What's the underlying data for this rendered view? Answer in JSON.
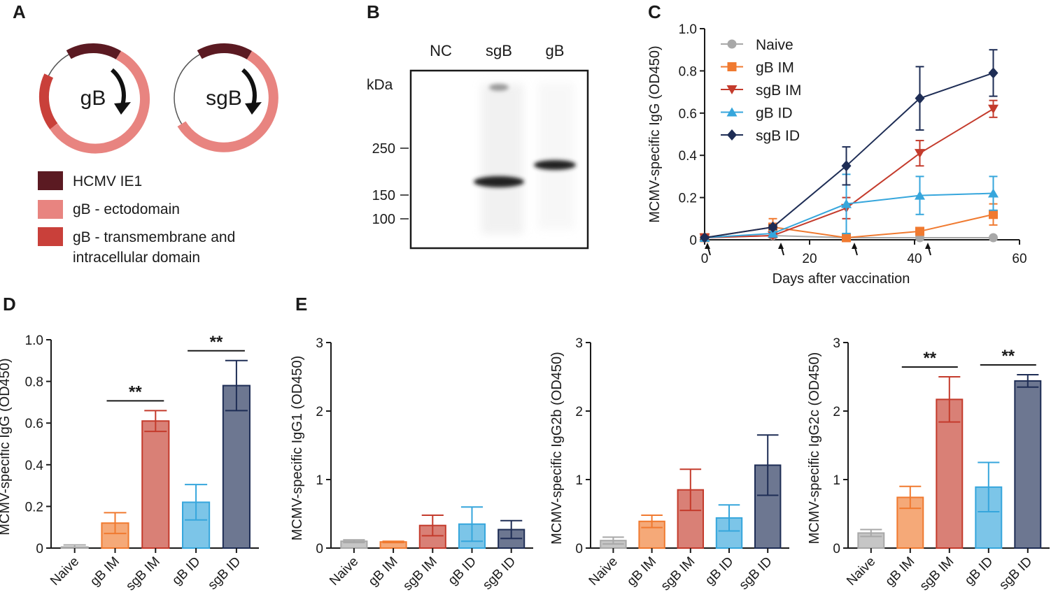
{
  "figure": {
    "panel_labels": [
      "A",
      "B",
      "C",
      "D",
      "E"
    ],
    "colors": {
      "hcmv_ie1": "#5b1a22",
      "gb_ecto": "#e88480",
      "gb_tm": "#c9403a",
      "naive": "#a8a8a8",
      "gb_im": "#f07a30",
      "sgb_im": "#c43b2c",
      "gb_id": "#36a6dc",
      "sgb_id": "#1e2d55"
    }
  },
  "panel_a": {
    "plasmid_labels": [
      "gB",
      "sgB"
    ],
    "legend": [
      {
        "label": "HCMV IE1",
        "color": "#5b1a22"
      },
      {
        "label": "gB - ectodomain",
        "color": "#e88480"
      },
      {
        "label": "gB - transmembrane and",
        "label2": "intracellular domain",
        "color": "#c9403a"
      }
    ]
  },
  "panel_b": {
    "lanes": [
      "NC",
      "sgB",
      "gB"
    ],
    "unit": "kDa",
    "markers": [
      "250",
      "150",
      "100"
    ]
  },
  "chart_data": [
    {
      "id": "C",
      "type": "line",
      "xlabel": "Days after vaccination",
      "ylabel": "MCMV-specific IgG (OD450)",
      "xlim": [
        0,
        60
      ],
      "ylim": [
        0,
        1.0
      ],
      "xticks": [
        0,
        20,
        40,
        60
      ],
      "yticks": [
        0,
        0.2,
        0.4,
        0.6,
        0.8,
        1.0
      ],
      "ytick_labels": [
        "0",
        "0.2",
        "0.4",
        "0.6",
        "0.8",
        "1.0"
      ],
      "vaccination_days": [
        0,
        14,
        28,
        42
      ],
      "legend_position": "top-left",
      "series": [
        {
          "name": "Naive",
          "marker": "circle",
          "color": "#a8a8a8",
          "x": [
            0,
            13,
            27,
            41,
            55
          ],
          "y": [
            0.01,
            0.02,
            0.01,
            0.01,
            0.01
          ],
          "err": [
            0.005,
            0.005,
            0.005,
            0.005,
            0.005
          ]
        },
        {
          "name": "gB IM",
          "marker": "square",
          "color": "#f07a30",
          "x": [
            0,
            13,
            27,
            41,
            55
          ],
          "y": [
            0.01,
            0.06,
            0.01,
            0.04,
            0.12
          ],
          "err": [
            0.005,
            0.04,
            0.01,
            0.01,
            0.05
          ]
        },
        {
          "name": "sgB IM",
          "marker": "triangle-down",
          "color": "#c43b2c",
          "x": [
            0,
            13,
            27,
            41,
            55
          ],
          "y": [
            0.01,
            0.02,
            0.15,
            0.41,
            0.62
          ],
          "err": [
            0.005,
            0.01,
            0.05,
            0.06,
            0.04
          ]
        },
        {
          "name": "gB ID",
          "marker": "triangle-up",
          "color": "#36a6dc",
          "x": [
            0,
            13,
            27,
            41,
            55
          ],
          "y": [
            0.01,
            0.03,
            0.17,
            0.21,
            0.22
          ],
          "err": [
            0.005,
            0.01,
            0.14,
            0.09,
            0.08
          ]
        },
        {
          "name": "sgB ID",
          "marker": "diamond",
          "color": "#1e2d55",
          "x": [
            0,
            13,
            27,
            41,
            55
          ],
          "y": [
            0.01,
            0.06,
            0.35,
            0.67,
            0.79
          ],
          "err": [
            0.005,
            0.01,
            0.09,
            0.15,
            0.11
          ]
        }
      ]
    },
    {
      "id": "D",
      "type": "bar",
      "categories": [
        "Naive",
        "gB IM",
        "sgB IM",
        "gB ID",
        "sgB ID"
      ],
      "values": [
        0.005,
        0.12,
        0.61,
        0.22,
        0.78
      ],
      "errors": [
        0.01,
        0.05,
        0.05,
        0.085,
        0.12
      ],
      "ylabel": "MCMV-specific IgG (OD450)",
      "ylim": [
        0,
        1.0
      ],
      "yticks": [
        0,
        0.2,
        0.4,
        0.6,
        0.8,
        1.0
      ],
      "ytick_labels": [
        "0",
        "0.2",
        "0.4",
        "0.6",
        "0.8",
        "1.0"
      ],
      "significance": [
        {
          "from": 1,
          "to": 2,
          "label": "**"
        },
        {
          "from": 3,
          "to": 4,
          "label": "**"
        }
      ]
    },
    {
      "id": "E1",
      "type": "bar",
      "categories": [
        "Naive",
        "gB IM",
        "sgB IM",
        "gB ID",
        "sgB ID"
      ],
      "values": [
        0.1,
        0.09,
        0.33,
        0.35,
        0.27
      ],
      "errors": [
        0.02,
        0.01,
        0.15,
        0.25,
        0.13
      ],
      "ylabel": "MCMV-specific IgG1 (OD450)",
      "ylim": [
        0,
        3
      ],
      "yticks": [
        0,
        1,
        2,
        3
      ],
      "ytick_labels": [
        "0",
        "1",
        "2",
        "3"
      ],
      "significance": []
    },
    {
      "id": "E2",
      "type": "bar",
      "categories": [
        "Naive",
        "gB IM",
        "sgB IM",
        "gB ID",
        "sgB ID"
      ],
      "values": [
        0.11,
        0.39,
        0.85,
        0.44,
        1.21
      ],
      "errors": [
        0.05,
        0.09,
        0.3,
        0.19,
        0.44
      ],
      "ylabel": "MCMV-specific IgG2b (OD450)",
      "ylim": [
        0,
        3
      ],
      "yticks": [
        0,
        1,
        2,
        3
      ],
      "ytick_labels": [
        "0",
        "1",
        "2",
        "3"
      ],
      "significance": []
    },
    {
      "id": "E3",
      "type": "bar",
      "categories": [
        "Naive",
        "gB IM",
        "sgB IM",
        "gB ID",
        "sgB ID"
      ],
      "values": [
        0.22,
        0.74,
        2.17,
        0.89,
        2.44
      ],
      "errors": [
        0.05,
        0.16,
        0.33,
        0.36,
        0.09
      ],
      "ylabel": "MCMV-specific IgG2c (OD450)",
      "ylim": [
        0,
        3
      ],
      "yticks": [
        0,
        1,
        2,
        3
      ],
      "ytick_labels": [
        "0",
        "1",
        "2",
        "3"
      ],
      "significance": [
        {
          "from": 1,
          "to": 2,
          "label": "**"
        },
        {
          "from": 3,
          "to": 4,
          "label": "**"
        }
      ]
    }
  ]
}
